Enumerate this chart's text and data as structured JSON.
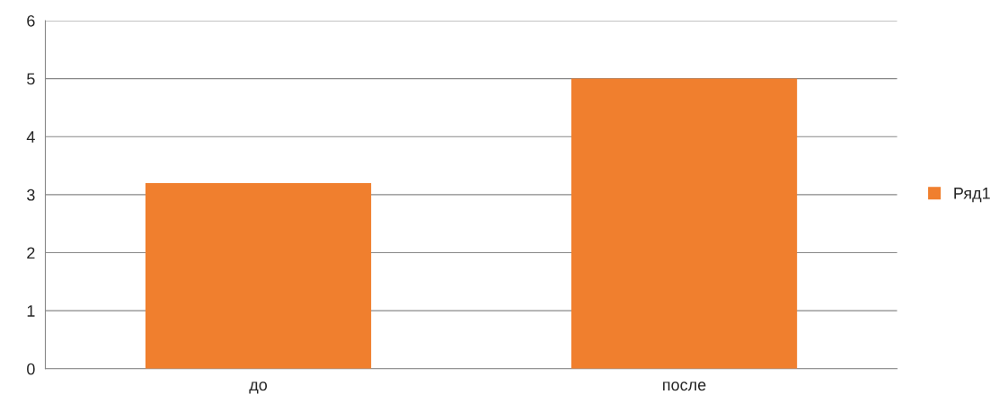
{
  "chart_data": {
    "type": "bar",
    "categories": [
      "до",
      "после"
    ],
    "series": [
      {
        "name": "Ряд1",
        "color": "#f07f2e",
        "values": [
          3.2,
          5
        ]
      }
    ],
    "ylim": [
      0,
      6
    ],
    "yticks": [
      0,
      1,
      2,
      3,
      4,
      5,
      6
    ],
    "grid": "y",
    "legend": "right"
  }
}
